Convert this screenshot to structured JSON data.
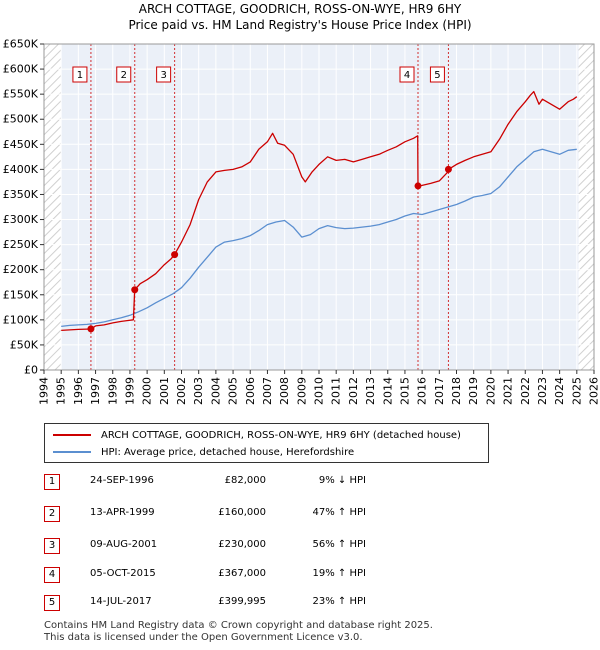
{
  "header": {
    "title": "ARCH COTTAGE, GOODRICH, ROSS-ON-WYE, HR9 6HY",
    "subtitle": "Price paid vs. HM Land Registry's House Price Index (HPI)"
  },
  "legend": {
    "property_label": "ARCH COTTAGE, GOODRICH, ROSS-ON-WYE, HR9 6HY (detached house)",
    "hpi_label": "HPI: Average price, detached house, Herefordshire"
  },
  "transactions": [
    {
      "num": "1",
      "date": "24-SEP-1996",
      "price": "£82,000",
      "hpi": "9% ↓ HPI"
    },
    {
      "num": "2",
      "date": "13-APR-1999",
      "price": "£160,000",
      "hpi": "47% ↑ HPI"
    },
    {
      "num": "3",
      "date": "09-AUG-2001",
      "price": "£230,000",
      "hpi": "56% ↑ HPI"
    },
    {
      "num": "4",
      "date": "05-OCT-2015",
      "price": "£367,000",
      "hpi": "19% ↑ HPI"
    },
    {
      "num": "5",
      "date": "14-JUL-2017",
      "price": "£399,995",
      "hpi": "23% ↑ HPI"
    }
  ],
  "footer": {
    "line1": "Contains HM Land Registry data © Crown copyright and database right 2025.",
    "line2": "This data is licensed under the Open Government Licence v3.0."
  },
  "colors": {
    "property": "#cc0000",
    "hpi": "#5b8fd0",
    "plot_bg": "#ebf0f8",
    "future_band": "#ececec",
    "grid": "#ffffff"
  },
  "chart_data": {
    "type": "line",
    "xlim": [
      1994,
      2026
    ],
    "ylim": [
      0,
      650000
    ],
    "x_ticks": [
      1994,
      1995,
      1996,
      1997,
      1998,
      1999,
      2000,
      2001,
      2002,
      2003,
      2004,
      2005,
      2006,
      2007,
      2008,
      2009,
      2010,
      2011,
      2012,
      2013,
      2014,
      2015,
      2016,
      2017,
      2018,
      2019,
      2020,
      2021,
      2022,
      2023,
      2024,
      2025,
      2026
    ],
    "x_tick_labels": [
      "1994",
      "1995",
      "1996",
      "1997",
      "1998",
      "1999",
      "2000",
      "2001",
      "2002",
      "2003",
      "2004",
      "2005",
      "2006",
      "2007",
      "2008",
      "2009",
      "2010",
      "2011",
      "2012",
      "2013",
      "2014",
      "2015",
      "2016",
      "2017",
      "2018",
      "2019",
      "2020",
      "2021",
      "2022",
      "2023",
      "2024",
      "2025",
      "2026"
    ],
    "y_ticks": [
      0,
      50000,
      100000,
      150000,
      200000,
      250000,
      300000,
      350000,
      400000,
      450000,
      500000,
      550000,
      600000,
      650000
    ],
    "y_tick_labels": [
      "£0",
      "£50K",
      "£100K",
      "£150K",
      "£200K",
      "£250K",
      "£300K",
      "£350K",
      "£400K",
      "£450K",
      "£500K",
      "£550K",
      "£600K",
      "£650K"
    ],
    "hatched_before": 1995,
    "hatched_after": 2025.1,
    "grid": true,
    "sales": [
      {
        "label": "1",
        "x": 1996.73,
        "y": 82000
      },
      {
        "label": "2",
        "x": 1999.28,
        "y": 160000
      },
      {
        "label": "3",
        "x": 2001.6,
        "y": 230000
      },
      {
        "label": "4",
        "x": 2015.76,
        "y": 367000
      },
      {
        "label": "5",
        "x": 2017.53,
        "y": 399995
      }
    ],
    "series": [
      {
        "name": "ARCH COTTAGE, GOODRICH, ROSS-ON-WYE, HR9 6HY (detached house)",
        "x": [
          1995,
          1995.5,
          1996,
          1996.5,
          1996.73,
          1997,
          1997.5,
          1998,
          1998.5,
          1999.2,
          1999.28,
          1999.6,
          2000,
          2000.5,
          2001,
          2001.4,
          2001.6,
          2002,
          2002.5,
          2003,
          2003.5,
          2004,
          2004.5,
          2005,
          2005.5,
          2006,
          2006.5,
          2007,
          2007.3,
          2007.6,
          2008,
          2008.5,
          2009,
          2009.2,
          2009.6,
          2010,
          2010.5,
          2011,
          2011.5,
          2012,
          2012.5,
          2013,
          2013.5,
          2014,
          2014.5,
          2015,
          2015.5,
          2015.74,
          2015.76,
          2016,
          2016.5,
          2017,
          2017.5,
          2017.53,
          2018,
          2018.5,
          2019,
          2019.5,
          2020,
          2020.5,
          2021,
          2021.5,
          2022,
          2022.3,
          2022.5,
          2022.8,
          2023,
          2023.5,
          2024,
          2024.5,
          2024.8,
          2025
        ],
        "y": [
          79000,
          80000,
          81000,
          81500,
          82000,
          88000,
          90000,
          94000,
          97000,
          100000,
          160000,
          172000,
          180000,
          192000,
          210000,
          222000,
          230000,
          255000,
          290000,
          340000,
          375000,
          395000,
          398000,
          400000,
          405000,
          415000,
          440000,
          455000,
          472000,
          452000,
          448000,
          430000,
          385000,
          375000,
          395000,
          410000,
          425000,
          418000,
          420000,
          415000,
          420000,
          425000,
          430000,
          438000,
          445000,
          455000,
          462000,
          467000,
          367000,
          368000,
          372000,
          377000,
          395000,
          399995,
          410000,
          418000,
          425000,
          430000,
          435000,
          460000,
          490000,
          515000,
          535000,
          548000,
          555000,
          530000,
          540000,
          530000,
          520000,
          535000,
          540000,
          545000
        ]
      },
      {
        "name": "HPI: Average price, detached house, Herefordshire",
        "x": [
          1995,
          1995.5,
          1996,
          1996.5,
          1997,
          1997.5,
          1998,
          1998.5,
          1999,
          1999.5,
          2000,
          2000.5,
          2001,
          2001.5,
          2002,
          2002.5,
          2003,
          2003.5,
          2004,
          2004.5,
          2005,
          2005.5,
          2006,
          2006.5,
          2007,
          2007.5,
          2008,
          2008.5,
          2009,
          2009.5,
          2010,
          2010.5,
          2011,
          2011.5,
          2012,
          2012.5,
          2013,
          2013.5,
          2014,
          2014.5,
          2015,
          2015.5,
          2016,
          2016.5,
          2017,
          2017.5,
          2018,
          2018.5,
          2019,
          2019.5,
          2020,
          2020.5,
          2021,
          2021.5,
          2022,
          2022.5,
          2023,
          2023.5,
          2024,
          2024.5,
          2025
        ],
        "y": [
          87000,
          89000,
          90000,
          91000,
          93000,
          96000,
          100000,
          104000,
          109000,
          116000,
          124000,
          134000,
          143000,
          152000,
          164000,
          183000,
          205000,
          225000,
          245000,
          255000,
          258000,
          262000,
          268000,
          278000,
          290000,
          295000,
          298000,
          285000,
          265000,
          270000,
          282000,
          288000,
          284000,
          282000,
          283000,
          285000,
          287000,
          290000,
          295000,
          300000,
          307000,
          312000,
          310000,
          315000,
          320000,
          325000,
          330000,
          337000,
          345000,
          348000,
          352000,
          365000,
          385000,
          405000,
          420000,
          435000,
          440000,
          435000,
          430000,
          438000,
          440000
        ]
      }
    ]
  }
}
